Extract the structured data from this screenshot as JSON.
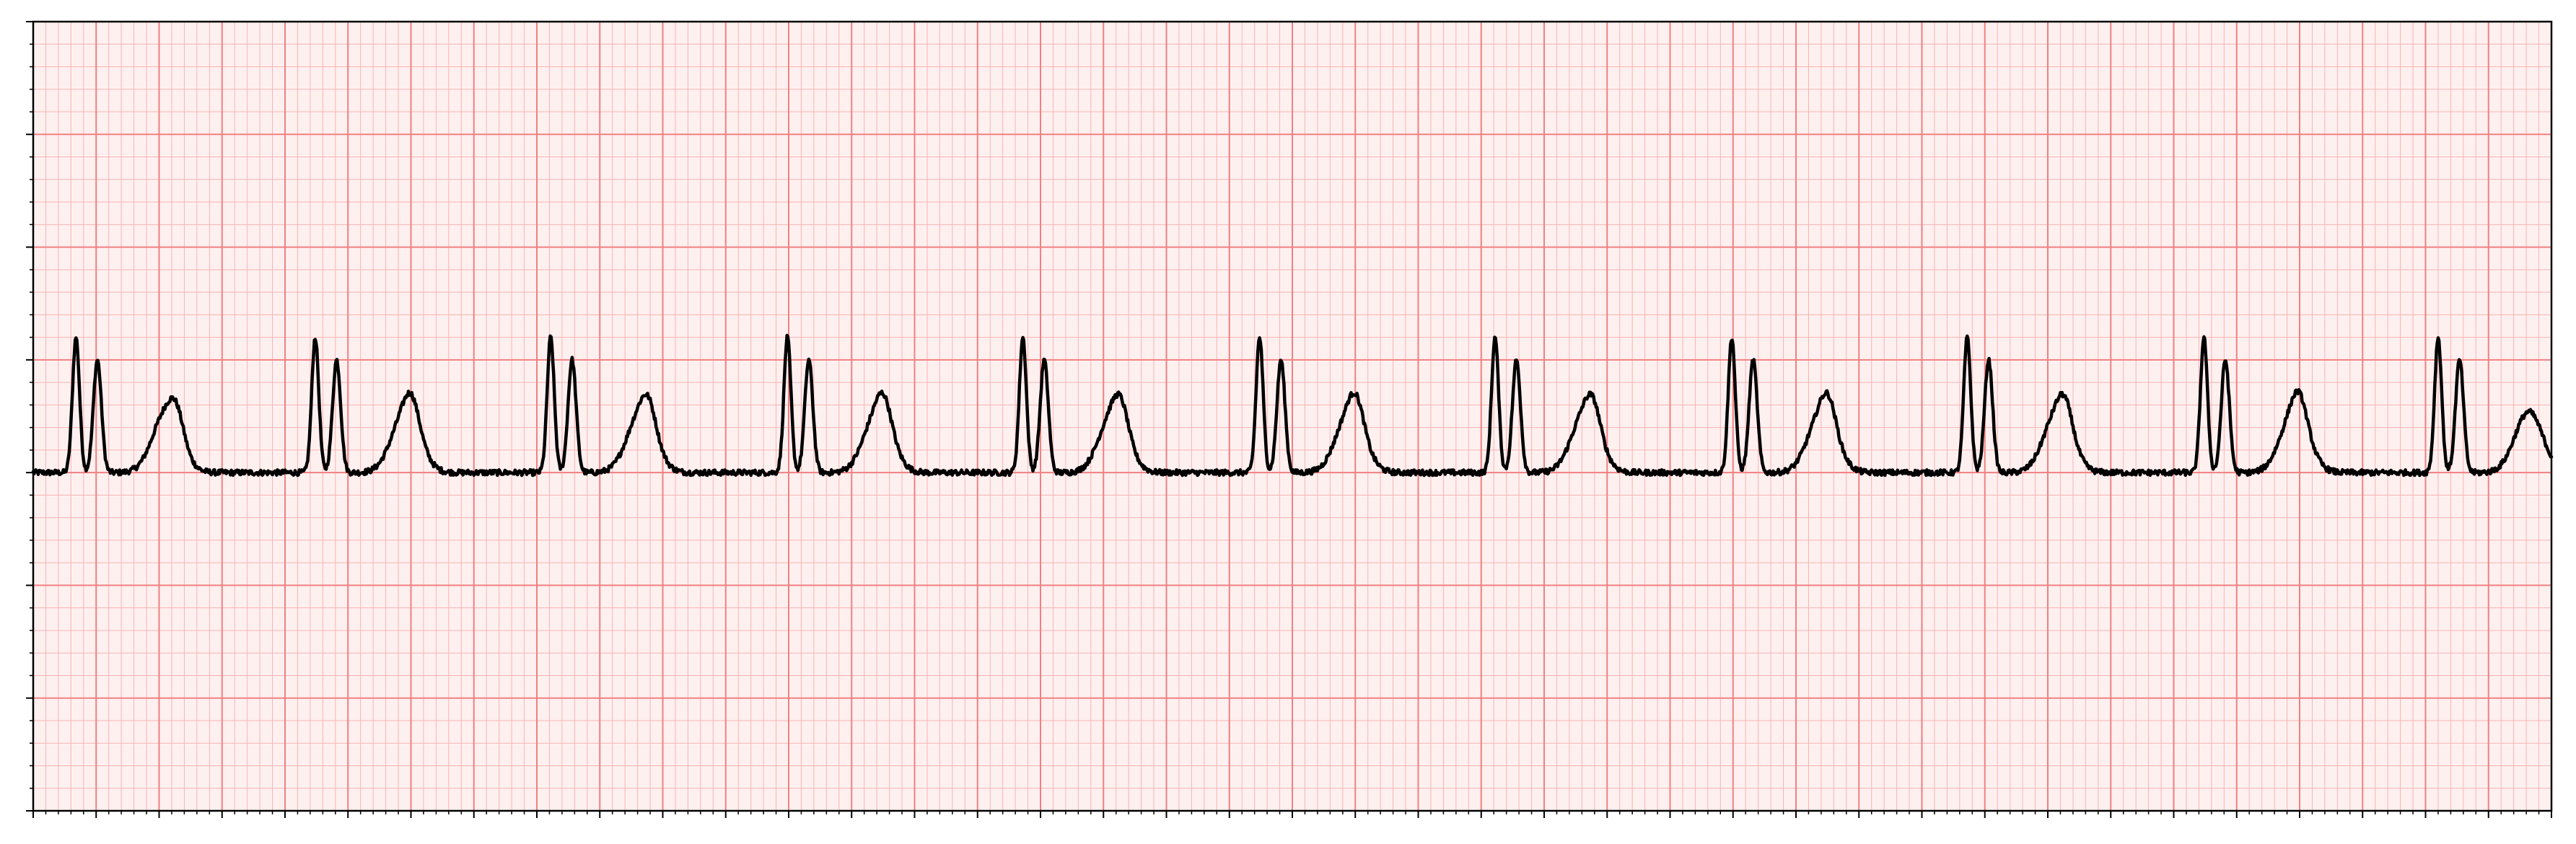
{
  "chart_data": {
    "type": "line",
    "title": "",
    "xlabel": "",
    "ylabel": "",
    "xlim": [
      0,
      10
    ],
    "ylim": [
      -1.5,
      2
    ],
    "grid": true,
    "grid_style": "ecg-paper",
    "x_major_step": 0.25,
    "x_minor_step": 0.05,
    "y_major_step": 0.5,
    "y_minor_step": 0.1,
    "tick_labels_shown": false,
    "line_color": "#000000",
    "major_grid_color": "#f08080",
    "minor_grid_color": "#f7b3b3",
    "background_color": "#fff0f0",
    "beats": [
      0.17,
      1.12,
      2.055,
      2.995,
      3.93,
      4.87,
      5.805,
      6.745,
      7.68,
      8.62,
      9.55
    ],
    "baseline": 0.0,
    "p_wave_amplitude": 0.1,
    "r_peak_1_amplitude": 0.6,
    "r_peak_2_amplitude": 0.5,
    "t_wave_amplitude": 0.27
  }
}
